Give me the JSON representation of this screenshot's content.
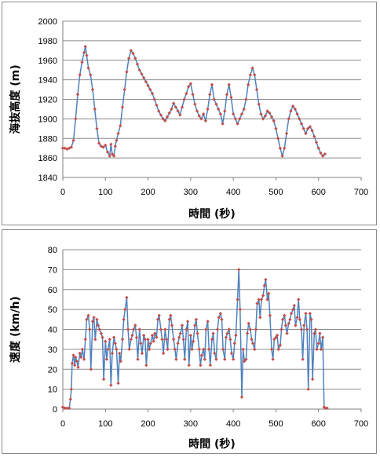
{
  "chart_data": [
    {
      "type": "line",
      "title": "",
      "xlabel": "時間 (秒)",
      "ylabel": "海抜高度 (m)",
      "xlim": [
        0,
        700
      ],
      "ylim": [
        1840,
        2000
      ],
      "xticks": [
        0,
        100,
        200,
        300,
        400,
        500,
        600,
        700
      ],
      "yticks": [
        1840,
        1860,
        1880,
        1900,
        1920,
        1940,
        1960,
        1980,
        2000
      ],
      "grid": "horizontal",
      "legend": "none",
      "line_color": "#4f81bd",
      "marker_color": "#c0504d",
      "series": [
        {
          "x": [
            0,
            5,
            10,
            15,
            20,
            25,
            30,
            35,
            40,
            45,
            50,
            53,
            56,
            60,
            65,
            70,
            75,
            80,
            85,
            90,
            95,
            100,
            105,
            110,
            113,
            116,
            120,
            123,
            126,
            130,
            135,
            140,
            145,
            150,
            155,
            160,
            165,
            170,
            175,
            180,
            185,
            190,
            195,
            200,
            205,
            210,
            215,
            220,
            225,
            230,
            235,
            240,
            245,
            250,
            255,
            260,
            265,
            270,
            275,
            280,
            285,
            290,
            295,
            300,
            305,
            310,
            315,
            320,
            325,
            330,
            335,
            340,
            345,
            350,
            355,
            360,
            365,
            370,
            375,
            380,
            385,
            390,
            395,
            400,
            405,
            410,
            415,
            420,
            425,
            430,
            435,
            440,
            445,
            450,
            455,
            460,
            465,
            470,
            475,
            480,
            485,
            490,
            495,
            500,
            505,
            510,
            515,
            520,
            525,
            530,
            535,
            540,
            545,
            550,
            555,
            560,
            565,
            570,
            575,
            580,
            585,
            590,
            595,
            600,
            605,
            610,
            615
          ],
          "y": [
            1870,
            1870,
            1869,
            1870,
            1871,
            1878,
            1900,
            1925,
            1945,
            1958,
            1968,
            1974,
            1965,
            1952,
            1945,
            1930,
            1910,
            1890,
            1875,
            1872,
            1871,
            1873,
            1866,
            1862,
            1874,
            1864,
            1862,
            1872,
            1878,
            1885,
            1893,
            1912,
            1930,
            1948,
            1962,
            1970,
            1967,
            1962,
            1956,
            1950,
            1946,
            1942,
            1938,
            1934,
            1930,
            1926,
            1920,
            1914,
            1908,
            1904,
            1900,
            1898,
            1902,
            1906,
            1910,
            1916,
            1912,
            1908,
            1904,
            1912,
            1920,
            1926,
            1933,
            1936,
            1925,
            1915,
            1908,
            1903,
            1900,
            1905,
            1898,
            1910,
            1925,
            1935,
            1920,
            1915,
            1910,
            1905,
            1895,
            1908,
            1925,
            1935,
            1922,
            1905,
            1900,
            1895,
            1900,
            1905,
            1910,
            1920,
            1935,
            1945,
            1952,
            1945,
            1930,
            1915,
            1905,
            1900,
            1903,
            1908,
            1906,
            1902,
            1898,
            1890,
            1880,
            1870,
            1862,
            1870,
            1885,
            1900,
            1908,
            1913,
            1910,
            1905,
            1900,
            1895,
            1890,
            1885,
            1890,
            1892,
            1888,
            1882,
            1876,
            1870,
            1865,
            1862,
            1864
          ]
        }
      ]
    },
    {
      "type": "line",
      "title": "",
      "xlabel": "時間 (秒)",
      "ylabel": "速度 (km/h)",
      "xlim": [
        0,
        700
      ],
      "ylim": [
        0,
        80
      ],
      "xticks": [
        0,
        100,
        200,
        300,
        400,
        500,
        600,
        700
      ],
      "yticks": [
        0,
        10,
        20,
        30,
        40,
        50,
        60,
        70,
        80
      ],
      "grid": "horizontal",
      "legend": "none",
      "line_color": "#4f81bd",
      "marker_color": "#c0504d",
      "series": [
        {
          "x": [
            0,
            5,
            10,
            15,
            18,
            20,
            22,
            25,
            28,
            30,
            33,
            36,
            40,
            43,
            46,
            50,
            53,
            56,
            60,
            63,
            66,
            70,
            73,
            76,
            80,
            83,
            86,
            90,
            93,
            96,
            100,
            103,
            106,
            110,
            113,
            116,
            120,
            123,
            126,
            130,
            133,
            136,
            140,
            143,
            146,
            150,
            153,
            156,
            160,
            163,
            166,
            170,
            173,
            176,
            180,
            183,
            186,
            190,
            193,
            196,
            200,
            203,
            206,
            210,
            213,
            216,
            220,
            223,
            226,
            230,
            233,
            236,
            240,
            243,
            246,
            250,
            253,
            256,
            260,
            263,
            266,
            270,
            273,
            276,
            280,
            283,
            286,
            290,
            293,
            296,
            300,
            303,
            306,
            310,
            313,
            316,
            320,
            323,
            326,
            330,
            333,
            336,
            340,
            343,
            346,
            350,
            353,
            356,
            360,
            363,
            366,
            370,
            373,
            376,
            380,
            383,
            386,
            390,
            393,
            396,
            400,
            403,
            406,
            410,
            413,
            416,
            420,
            423,
            426,
            430,
            433,
            436,
            440,
            443,
            446,
            450,
            453,
            456,
            460,
            463,
            466,
            470,
            473,
            476,
            480,
            483,
            486,
            490,
            493,
            496,
            500,
            503,
            506,
            510,
            513,
            516,
            520,
            523,
            526,
            530,
            533,
            536,
            540,
            543,
            546,
            550,
            553,
            556,
            560,
            563,
            566,
            570,
            573,
            576,
            580,
            583,
            586,
            590,
            593,
            596,
            600,
            603,
            606,
            610,
            613,
            616,
            620
          ],
          "y": [
            1,
            0.5,
            0.5,
            0.5,
            5,
            10,
            23,
            27,
            22,
            26,
            24,
            21,
            28,
            26,
            30,
            25,
            35,
            45,
            47,
            40,
            20,
            44,
            46,
            35,
            45,
            42,
            40,
            38,
            36,
            15,
            34,
            25,
            30,
            35,
            12,
            28,
            36,
            33,
            30,
            13,
            28,
            24,
            35,
            45,
            50,
            56,
            40,
            30,
            35,
            37,
            40,
            42,
            36,
            25,
            40,
            33,
            28,
            37,
            35,
            22,
            35,
            30,
            33,
            37,
            34,
            38,
            36,
            45,
            47,
            40,
            35,
            28,
            40,
            35,
            30,
            45,
            47,
            42,
            35,
            30,
            25,
            33,
            36,
            38,
            42,
            35,
            25,
            40,
            44,
            22,
            37,
            30,
            34,
            42,
            45,
            38,
            30,
            22,
            27,
            30,
            25,
            40,
            44,
            30,
            22,
            35,
            38,
            28,
            25,
            40,
            46,
            48,
            45,
            30,
            25,
            36,
            38,
            40,
            35,
            28,
            25,
            33,
            37,
            55,
            70,
            50,
            6,
            30,
            24,
            25,
            38,
            43,
            40,
            35,
            33,
            30,
            40,
            53,
            55,
            46,
            55,
            57,
            62,
            65,
            55,
            58,
            47,
            30,
            25,
            35,
            36,
            37,
            30,
            32,
            40,
            45,
            47,
            42,
            38,
            43,
            45,
            48,
            50,
            52,
            42,
            46,
            55,
            45,
            40,
            25,
            42,
            48,
            40,
            10,
            48,
            45,
            15,
            38,
            40,
            30,
            33,
            38,
            30,
            36,
            1,
            0.5,
            0.5
          ]
        }
      ]
    }
  ]
}
